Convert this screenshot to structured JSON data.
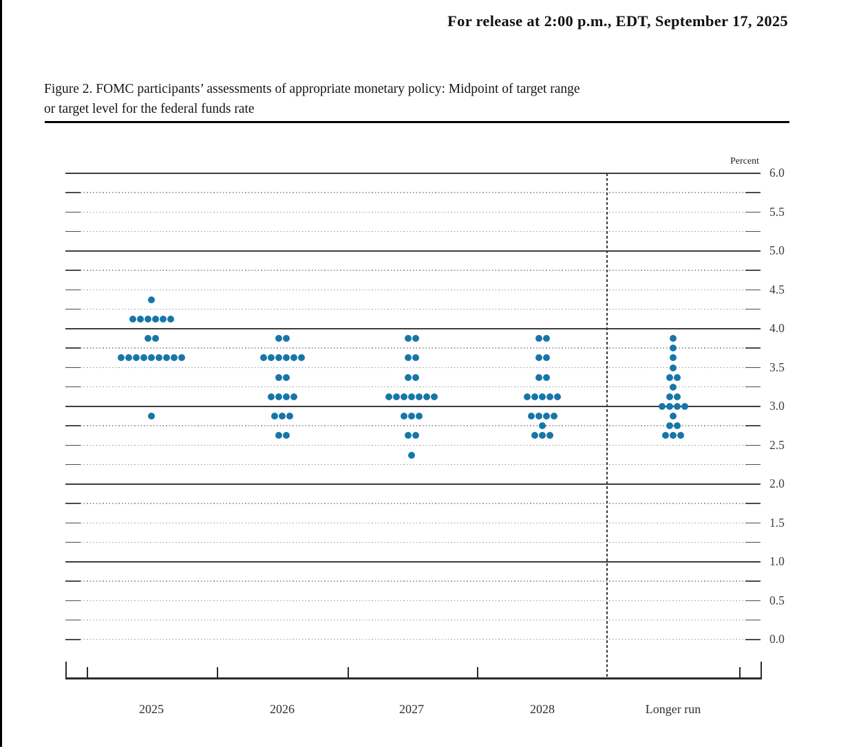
{
  "page": {
    "release_line": "For release at 2:00 p.m., EDT, September 17, 2025",
    "figure_caption_line1": "Figure 2. FOMC participants’ assessments of appropriate monetary policy: Midpoint of target range",
    "figure_caption_line2": "or target level for the federal funds rate"
  },
  "chart_data": {
    "type": "scatter",
    "title": "FOMC participants’ assessments of appropriate monetary policy: Midpoint of target range or target level for the federal funds rate",
    "unit_label": "Percent",
    "ylim": [
      0.0,
      6.0
    ],
    "ytick_labels": [
      "6.0",
      "5.5",
      "5.0",
      "4.5",
      "4.0",
      "3.5",
      "3.0",
      "2.5",
      "2.0",
      "1.5",
      "1.0",
      "0.5",
      "0.0"
    ],
    "grid": "solid lines at whole percents 1.0-6.0, dotted lines at every 0.25 and at 0.0",
    "legend_position": "none",
    "dot_color": "#1776a8",
    "participants_per_year": 19,
    "categories": [
      "2025",
      "2026",
      "2027",
      "2028",
      "Longer run"
    ],
    "columns": [
      {
        "category": "2025",
        "dots": [
          {
            "rate": 4.375,
            "count": 1
          },
          {
            "rate": 4.125,
            "count": 6
          },
          {
            "rate": 3.875,
            "count": 2
          },
          {
            "rate": 3.625,
            "count": 9
          },
          {
            "rate": 2.875,
            "count": 1
          }
        ]
      },
      {
        "category": "2026",
        "dots": [
          {
            "rate": 3.875,
            "count": 2
          },
          {
            "rate": 3.625,
            "count": 6
          },
          {
            "rate": 3.375,
            "count": 2
          },
          {
            "rate": 3.125,
            "count": 4
          },
          {
            "rate": 2.875,
            "count": 3
          },
          {
            "rate": 2.625,
            "count": 2
          }
        ]
      },
      {
        "category": "2027",
        "dots": [
          {
            "rate": 3.875,
            "count": 2
          },
          {
            "rate": 3.625,
            "count": 2
          },
          {
            "rate": 3.375,
            "count": 2
          },
          {
            "rate": 3.125,
            "count": 7
          },
          {
            "rate": 2.875,
            "count": 3
          },
          {
            "rate": 2.625,
            "count": 2
          },
          {
            "rate": 2.375,
            "count": 1
          }
        ]
      },
      {
        "category": "2028",
        "dots": [
          {
            "rate": 3.875,
            "count": 2
          },
          {
            "rate": 3.625,
            "count": 2
          },
          {
            "rate": 3.375,
            "count": 2
          },
          {
            "rate": 3.125,
            "count": 5
          },
          {
            "rate": 2.875,
            "count": 4
          },
          {
            "rate": 2.75,
            "count": 1
          },
          {
            "rate": 2.625,
            "count": 3
          }
        ]
      },
      {
        "category": "Longer run",
        "dots": [
          {
            "rate": 3.875,
            "count": 1
          },
          {
            "rate": 3.75,
            "count": 1
          },
          {
            "rate": 3.625,
            "count": 1
          },
          {
            "rate": 3.5,
            "count": 1
          },
          {
            "rate": 3.375,
            "count": 2
          },
          {
            "rate": 3.25,
            "count": 1
          },
          {
            "rate": 3.125,
            "count": 2
          },
          {
            "rate": 3.0,
            "count": 4
          },
          {
            "rate": 2.875,
            "count": 1
          },
          {
            "rate": 2.75,
            "count": 2
          },
          {
            "rate": 2.625,
            "count": 3
          }
        ]
      }
    ]
  }
}
